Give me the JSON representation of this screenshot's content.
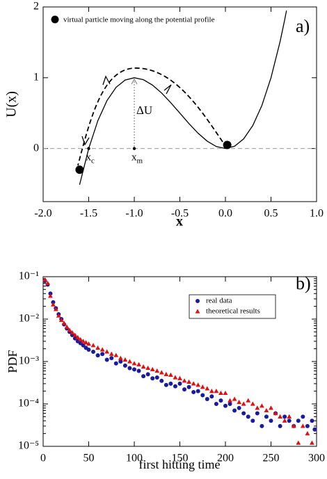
{
  "chart_data": [
    {
      "type": "line",
      "xlabel": "x",
      "ylabel": "U(x)",
      "panel_label": "a)",
      "legend_text": "virtual particle moving along the potential profile",
      "annotation": "ΔU",
      "point_labels": [
        {
          "text": "x",
          "sub": "c"
        },
        {
          "text": "x",
          "sub": "m"
        }
      ],
      "x": [
        -1.6,
        -1.5,
        -1.4,
        -1.3,
        -1.2,
        -1.1,
        -1.0,
        -0.9,
        -0.8,
        -0.7,
        -0.6,
        -0.5,
        -0.4,
        -0.3,
        -0.2,
        -0.1,
        0.0,
        0.1,
        0.2,
        0.3,
        0.4,
        0.5,
        0.6,
        0.65,
        0.67
      ],
      "values": [
        -0.512,
        0,
        0.392,
        0.676,
        0.864,
        0.968,
        1,
        0.972,
        0.896,
        0.784,
        0.648,
        0.5,
        0.352,
        0.216,
        0.104,
        0.028,
        0,
        0.032,
        0.136,
        0.324,
        0.608,
        1.0,
        1.512,
        1.817,
        1.948
      ],
      "color": "#000000",
      "markers": {
        "x": [
          0.02,
          -1.6
        ],
        "y": [
          0.05,
          -0.3
        ]
      },
      "guide_points": {
        "x": [
          -1.5,
          -1.0
        ],
        "y": [
          0,
          0
        ]
      },
      "hline": 0,
      "xlim": [
        -2,
        1
      ],
      "ylim": [
        -0.75,
        2
      ],
      "xticks": [
        {
          "value": -2,
          "label": "-2.0"
        },
        -1.5,
        {
          "value": -1,
          "label": "-1.0"
        },
        -0.5,
        {
          "value": 0,
          "label": "0.0"
        },
        0.5,
        {
          "value": 1,
          "label": "1.0"
        }
      ],
      "yticks": [
        0,
        1,
        2
      ]
    },
    {
      "type": "scatter",
      "xlabel": "first hitting time",
      "ylabel": "PDF",
      "panel_label": "b)",
      "ylog": true,
      "xlim": [
        0,
        300
      ],
      "ylim": [
        1e-05,
        0.1
      ],
      "xticks": [
        0,
        50,
        100,
        150,
        200,
        250,
        300
      ],
      "yticks": [
        {
          "value": 1e-05,
          "label": "10⁻⁵"
        },
        {
          "value": 0.0001,
          "label": "10⁻⁴"
        },
        {
          "value": 0.001,
          "label": "10⁻³"
        },
        {
          "value": 0.01,
          "label": "10⁻²"
        },
        {
          "value": 0.1,
          "label": "10⁻¹"
        }
      ],
      "series": [
        {
          "name": "real data",
          "color": "#1a1a9c",
          "marker": "circle",
          "x": [
            2,
            5,
            8,
            11,
            14,
            17,
            20,
            23,
            26,
            29,
            32,
            35,
            38,
            41,
            44,
            47,
            50,
            55,
            60,
            65,
            70,
            75,
            80,
            85,
            90,
            95,
            100,
            105,
            110,
            115,
            120,
            125,
            130,
            135,
            140,
            145,
            150,
            155,
            160,
            165,
            170,
            175,
            180,
            185,
            190,
            195,
            200,
            205,
            210,
            215,
            220,
            225,
            230,
            235,
            240,
            245,
            250,
            255,
            260,
            265,
            270,
            275,
            280,
            285,
            290,
            295,
            298
          ],
          "values": [
            0.08,
            0.065,
            0.04,
            0.025,
            0.018,
            0.013,
            0.01,
            0.0075,
            0.006,
            0.005,
            0.0042,
            0.0035,
            0.003,
            0.0027,
            0.0024,
            0.0021,
            0.0019,
            0.0017,
            0.0014,
            0.0015,
            0.0011,
            0.0012,
            0.0009,
            0.001,
            0.0008,
            0.0007,
            0.00065,
            0.0006,
            0.00045,
            0.0005,
            0.0004,
            0.00042,
            0.00035,
            0.00028,
            0.0003,
            0.00026,
            0.0003,
            0.00022,
            0.00025,
            0.00019,
            0.0002,
            0.00016,
            0.00013,
            0.00015,
            0.0001,
            0.00012,
            9e-05,
            0.0001,
            7e-05,
            8e-05,
            6e-05,
            5e-05,
            4e-05,
            6e-05,
            3e-05,
            5e-05,
            4e-05,
            6e-05,
            3e-05,
            5e-05,
            4e-05,
            3e-05,
            4e-05,
            5e-05,
            3e-05,
            4e-05,
            2.5e-05
          ]
        },
        {
          "name": "theoretical results",
          "color": "#e01010",
          "marker": "triangle",
          "x": [
            2,
            5,
            8,
            11,
            14,
            17,
            20,
            23,
            26,
            29,
            32,
            35,
            38,
            41,
            44,
            47,
            50,
            55,
            60,
            65,
            70,
            75,
            80,
            85,
            90,
            95,
            100,
            105,
            110,
            115,
            120,
            125,
            130,
            135,
            140,
            145,
            150,
            155,
            160,
            165,
            170,
            175,
            180,
            185,
            190,
            195,
            200,
            205,
            210,
            215,
            220,
            225,
            230,
            235,
            240,
            245,
            250,
            255,
            260,
            265,
            270,
            275,
            280,
            285,
            290,
            295
          ],
          "values": [
            0.085,
            0.07,
            0.035,
            0.022,
            0.017,
            0.012,
            0.0095,
            0.008,
            0.0065,
            0.0055,
            0.0048,
            0.0042,
            0.0037,
            0.0033,
            0.003,
            0.0028,
            0.0026,
            0.0024,
            0.0021,
            0.0019,
            0.0017,
            0.0015,
            0.0014,
            0.0012,
            0.0011,
            0.001,
            0.0009,
            0.00085,
            0.00075,
            0.0007,
            0.00065,
            0.0006,
            0.00055,
            0.0005,
            0.00048,
            0.00042,
            0.0004,
            0.00035,
            0.00033,
            0.0003,
            0.00028,
            0.00025,
            0.00023,
            0.0002,
            0.0002,
            0.00018,
            0.00018,
            0.00012,
            0.00013,
            0.00011,
            0.0001,
            0.00012,
            0.0001,
            8e-05,
            9e-05,
            7e-05,
            8e-05,
            6e-05,
            5e-05,
            4e-05,
            5e-05,
            3e-05,
            1.2e-05,
            3e-05,
            2e-05,
            1.2e-05
          ]
        }
      ]
    }
  ]
}
